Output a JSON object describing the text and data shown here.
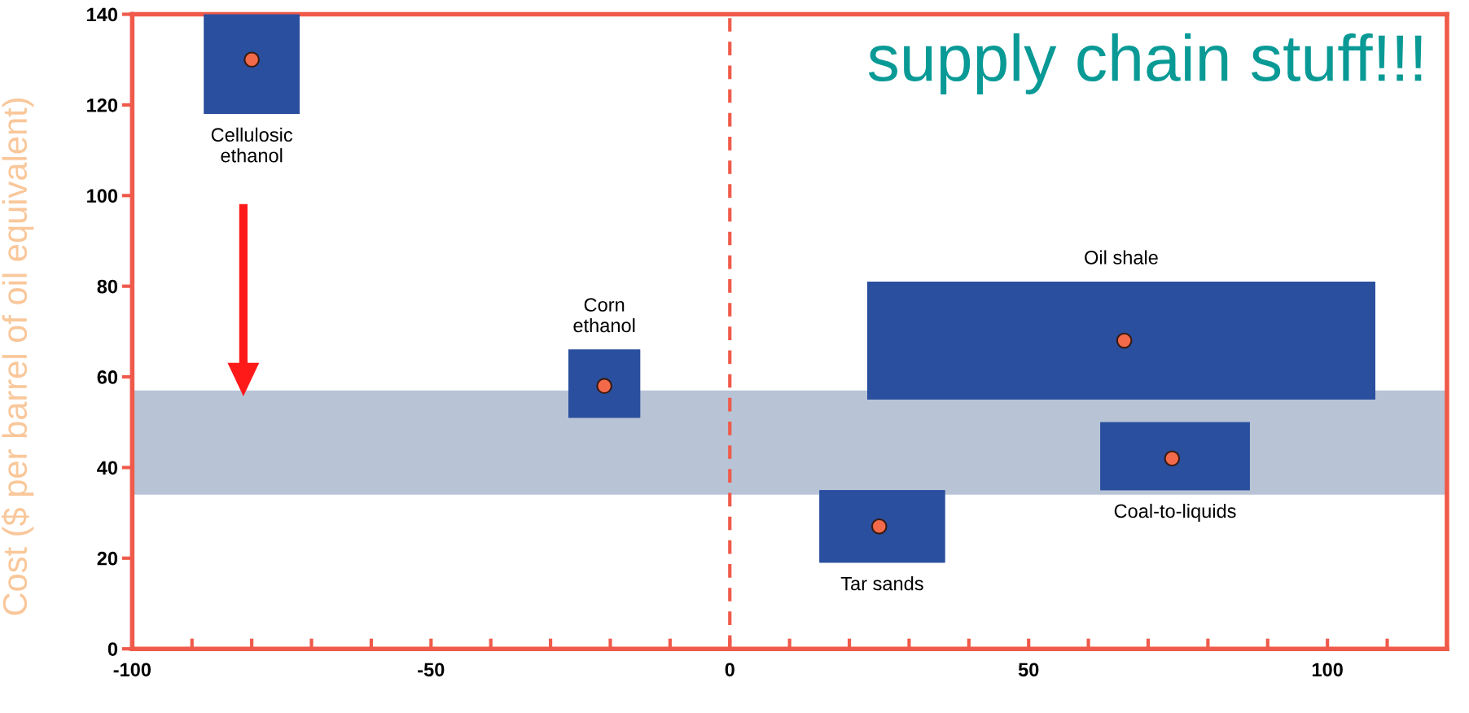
{
  "chart_data": {
    "type": "scatter",
    "title": "supply chain stuff!!!",
    "ylabel": "Cost ($ per barrel of oil equivalent)",
    "series": [
      {
        "color": "#f26a4a",
        "x": [
          -80,
          -21,
          66,
          74,
          25
        ],
        "values": [
          130,
          58,
          68,
          42,
          27
        ],
        "xerrors": [
          [
            -88,
            -72
          ],
          [
            -27,
            -15
          ],
          [
            23,
            108
          ],
          [
            62,
            87
          ],
          [
            15,
            36
          ]
        ],
        "errors": [
          [
            118,
            140
          ],
          [
            51,
            66
          ],
          [
            55,
            81
          ],
          [
            35,
            50
          ],
          [
            19,
            35
          ]
        ]
      }
    ],
    "marker": "circle",
    "annotations": [
      "Cellulosic\nethanol",
      "Corn\nethanol",
      "Oil shale",
      "Coal-to-liquids",
      "Tar sands"
    ],
    "bands": [
      {
        "axis": "y",
        "from": 34,
        "to": 57,
        "color": "#b8c4d6"
      }
    ],
    "ref_lines": [
      {
        "axis": "x",
        "value": 0,
        "color": "#f05a4a",
        "line_style": "dashed"
      }
    ],
    "xlim": [
      -100,
      120
    ],
    "ylim": [
      0,
      140
    ],
    "xticks": [
      -100,
      {
        "value": -90,
        "label": null
      },
      {
        "value": -80,
        "label": null
      },
      {
        "value": -70,
        "label": null
      },
      {
        "value": -60,
        "label": null
      },
      -50,
      {
        "value": -40,
        "label": null
      },
      {
        "value": -30,
        "label": null
      },
      {
        "value": -20,
        "label": null
      },
      {
        "value": -10,
        "label": null
      },
      0,
      {
        "value": 10,
        "label": null
      },
      {
        "value": 20,
        "label": null
      },
      {
        "value": 30,
        "label": null
      },
      {
        "value": 40,
        "label": null
      },
      50,
      {
        "value": 60,
        "label": null
      },
      {
        "value": 70,
        "label": null
      },
      {
        "value": 80,
        "label": null
      },
      {
        "value": 90,
        "label": null
      },
      100,
      {
        "value": 110,
        "label": null
      }
    ],
    "yticks": [
      0,
      20,
      40,
      60,
      80,
      100,
      120,
      140
    ],
    "grid": false,
    "legend": false
  }
}
